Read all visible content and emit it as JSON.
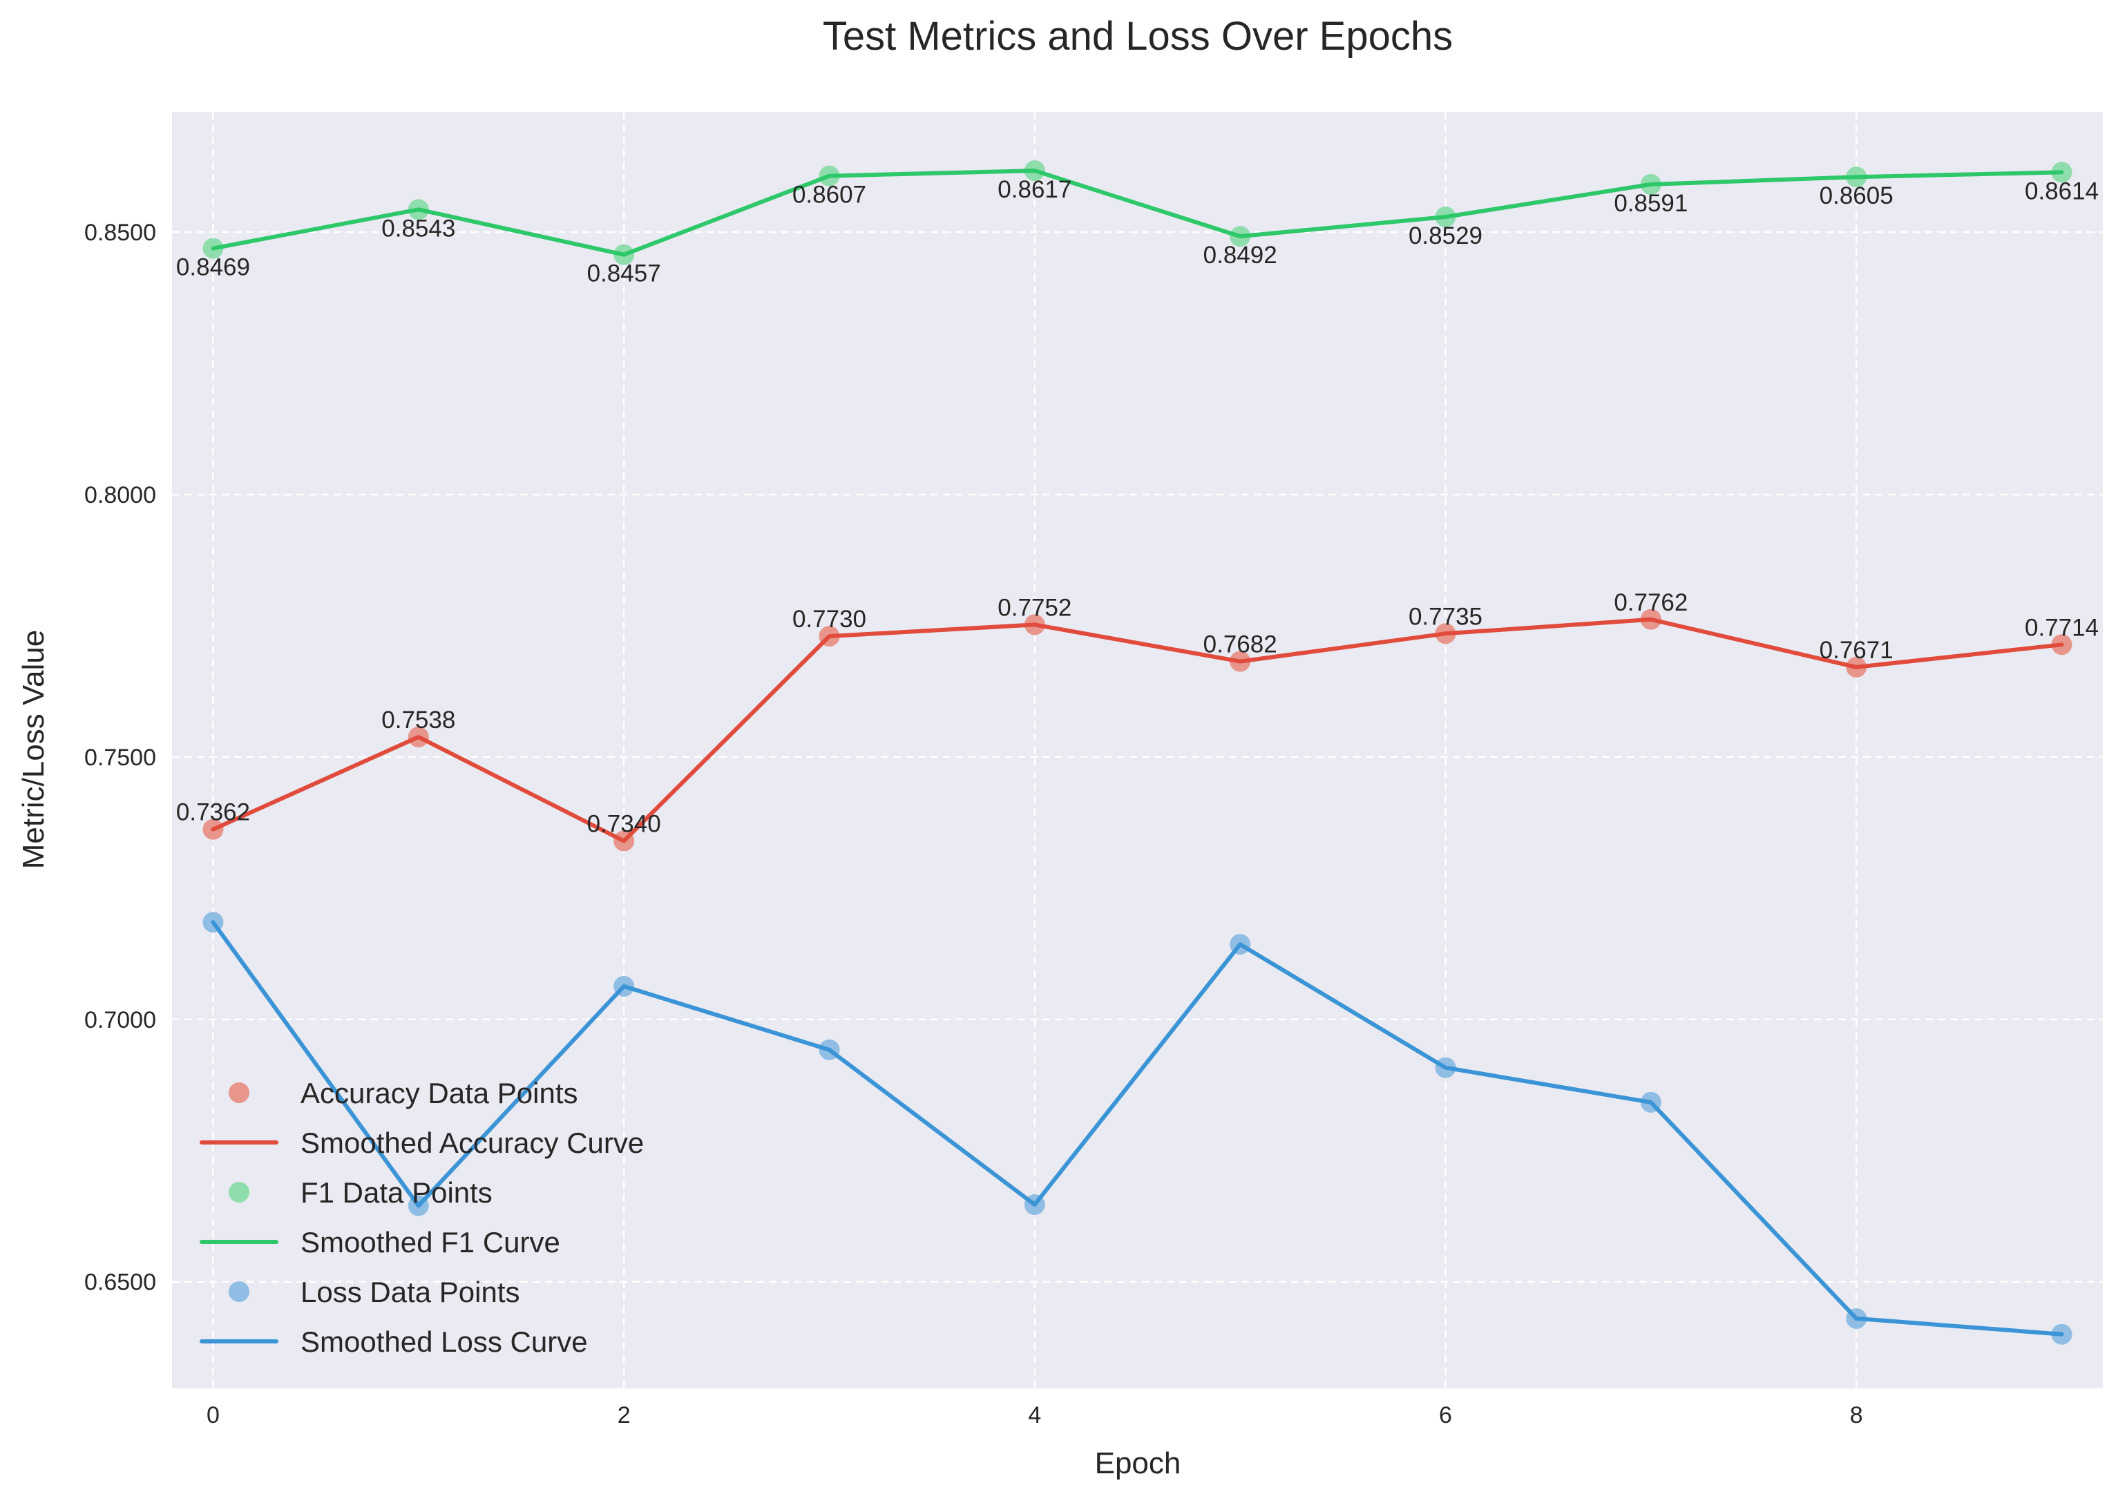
{
  "chart_data": {
    "type": "line",
    "title": "Test Metrics and Loss Over Epochs",
    "xlabel": "Epoch",
    "ylabel": "Metric/Loss Value",
    "xlim": [
      -0.2,
      9.2
    ],
    "ylim": [
      0.6297,
      0.8729
    ],
    "x": [
      0,
      1,
      2,
      3,
      4,
      5,
      6,
      7,
      8,
      9
    ],
    "xticks": [
      0,
      2,
      4,
      6,
      8
    ],
    "xtick_labels": [
      "0",
      "2",
      "4",
      "6",
      "8"
    ],
    "yticks": [
      0.65,
      0.7,
      0.75,
      0.8,
      0.85
    ],
    "ytick_labels": [
      "0.6500",
      "0.7000",
      "0.7500",
      "0.8000",
      "0.8500"
    ],
    "grid": true,
    "legend_position": "lower-left",
    "background": "#eaeaf2",
    "series": [
      {
        "key": "accuracy",
        "name": "Smoothed Accuracy Curve",
        "points_name": "Accuracy Data Points",
        "color": "#e04b3c",
        "point_color": "#e8958c",
        "values": [
          0.7362,
          0.7538,
          0.734,
          0.773,
          0.7752,
          0.7682,
          0.7735,
          0.7762,
          0.7671,
          0.7714
        ],
        "labels": [
          "0.7362",
          "0.7538",
          "0.7340",
          "0.7730",
          "0.7752",
          "0.7682",
          "0.7735",
          "0.7762",
          "0.7671",
          "0.7714"
        ],
        "label_placement": "above"
      },
      {
        "key": "f1",
        "name": "Smoothed F1 Curve",
        "points_name": "F1 Data Points",
        "color": "#2ec86a",
        "point_color": "#8fddac",
        "values": [
          0.8469,
          0.8543,
          0.8457,
          0.8607,
          0.8617,
          0.8492,
          0.8529,
          0.8591,
          0.8605,
          0.8614
        ],
        "labels": [
          "0.8469",
          "0.8543",
          "0.8457",
          "0.8607",
          "0.8617",
          "0.8492",
          "0.8529",
          "0.8591",
          "0.8605",
          "0.8614"
        ],
        "label_placement": "below"
      },
      {
        "key": "loss",
        "name": "Smoothed Loss Curve",
        "points_name": "Loss Data Points",
        "color": "#3a94d6",
        "point_color": "#8fbde3",
        "values": [
          0.7185,
          0.6645,
          0.7063,
          0.6942,
          0.6647,
          0.7143,
          0.6908,
          0.6842,
          0.643,
          0.64
        ],
        "labels": [],
        "label_placement": "none"
      }
    ],
    "legend": [
      {
        "label": "Accuracy Data Points",
        "kind": "point",
        "series": "accuracy"
      },
      {
        "label": "Smoothed Accuracy Curve",
        "kind": "line",
        "series": "accuracy"
      },
      {
        "label": "F1 Data Points",
        "kind": "point",
        "series": "f1"
      },
      {
        "label": "Smoothed F1 Curve",
        "kind": "line",
        "series": "f1"
      },
      {
        "label": "Loss Data Points",
        "kind": "point",
        "series": "loss"
      },
      {
        "label": "Smoothed Loss Curve",
        "kind": "line",
        "series": "loss"
      }
    ]
  }
}
